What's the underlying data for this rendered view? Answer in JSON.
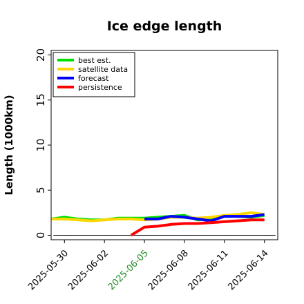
{
  "chart_data": {
    "type": "line",
    "title": "Ice edge length",
    "xlabel": "",
    "ylabel": "Length (1000km)",
    "ylim": [
      -0.5,
      20.5
    ],
    "yticks": [
      0,
      5,
      10,
      15,
      20
    ],
    "xlim": [
      "2025-05-29",
      "2025-06-15"
    ],
    "xticks": [
      "2025-05-30",
      "2025-06-02",
      "2025-06-05",
      "2025-06-08",
      "2025-06-11",
      "2025-06-14"
    ],
    "highlight_tick": "2025-06-05",
    "highlight_color": "#228b22",
    "zero_line": true,
    "legend_position": "top-left",
    "series": [
      {
        "name": "best est.",
        "color": "#00e000",
        "x": [
          "2025-05-29",
          "2025-05-30",
          "2025-05-31",
          "2025-06-01",
          "2025-06-02",
          "2025-06-03",
          "2025-06-04",
          "2025-06-05",
          "2025-06-06",
          "2025-06-07",
          "2025-06-08",
          "2025-06-09",
          "2025-06-10",
          "2025-06-11",
          "2025-06-12",
          "2025-06-13",
          "2025-06-14"
        ],
        "y": [
          1.8,
          2.0,
          1.8,
          1.7,
          1.7,
          1.9,
          1.9,
          1.9,
          2.0,
          2.1,
          2.2,
          1.7,
          1.8,
          2.1,
          2.1,
          2.0,
          2.2
        ]
      },
      {
        "name": "satellite data",
        "color": "#ffd700",
        "x": [
          "2025-05-29",
          "2025-05-30",
          "2025-05-31",
          "2025-06-01",
          "2025-06-02",
          "2025-06-03",
          "2025-06-04",
          "2025-06-05",
          "2025-06-06",
          "2025-06-07",
          "2025-06-08",
          "2025-06-09",
          "2025-06-10",
          "2025-06-11",
          "2025-06-12",
          "2025-06-13",
          "2025-06-14"
        ],
        "y": [
          1.8,
          1.8,
          1.7,
          1.6,
          1.7,
          1.8,
          1.8,
          1.7,
          1.8,
          2.0,
          2.0,
          1.9,
          2.0,
          2.2,
          2.3,
          2.5,
          2.3
        ]
      },
      {
        "name": "forecast",
        "color": "#0000ff",
        "x": [
          "2025-06-05",
          "2025-06-06",
          "2025-06-07",
          "2025-06-08",
          "2025-06-09",
          "2025-06-10",
          "2025-06-11",
          "2025-06-12",
          "2025-06-13",
          "2025-06-14"
        ],
        "y": [
          1.8,
          1.8,
          2.1,
          2.0,
          1.8,
          1.6,
          2.1,
          2.1,
          2.1,
          2.3
        ]
      },
      {
        "name": "persistence",
        "color": "#ff0000",
        "x": [
          "2025-06-04",
          "2025-06-05",
          "2025-06-06",
          "2025-06-07",
          "2025-06-08",
          "2025-06-09",
          "2025-06-10",
          "2025-06-11",
          "2025-06-12",
          "2025-06-13",
          "2025-06-14"
        ],
        "y": [
          0.0,
          0.9,
          1.0,
          1.2,
          1.3,
          1.3,
          1.4,
          1.5,
          1.6,
          1.7,
          1.7
        ]
      }
    ]
  }
}
